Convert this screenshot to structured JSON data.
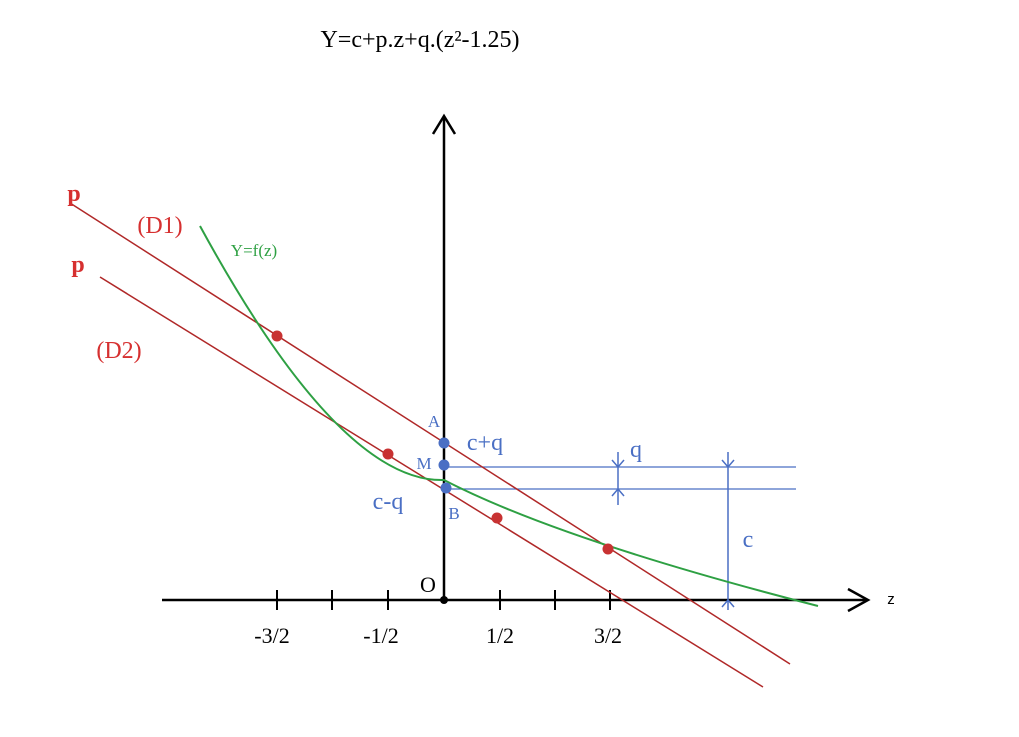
{
  "title": "Y=c+p.z+q.(z²-1.25)",
  "colors": {
    "axis": "#000000",
    "red": "#b02828",
    "red_label": "#d63030",
    "green": "#2ea043",
    "blue": "#4a6fc4",
    "blue_label": "#4a6fc4"
  },
  "labels": {
    "p_top": "p",
    "p_bottom": "p",
    "d1": "(D1)",
    "d2": "(D2)",
    "curve": "Y=f(z)",
    "point_a": "A",
    "point_m": "M",
    "point_b": "B",
    "c_plus_q": "c+q",
    "c_minus_q": "c-q",
    "q": "q",
    "c": "c",
    "origin": "O",
    "z_axis": "z"
  },
  "ticks": [
    "-3/2",
    "-1/2",
    "1/2",
    "3/2"
  ]
}
